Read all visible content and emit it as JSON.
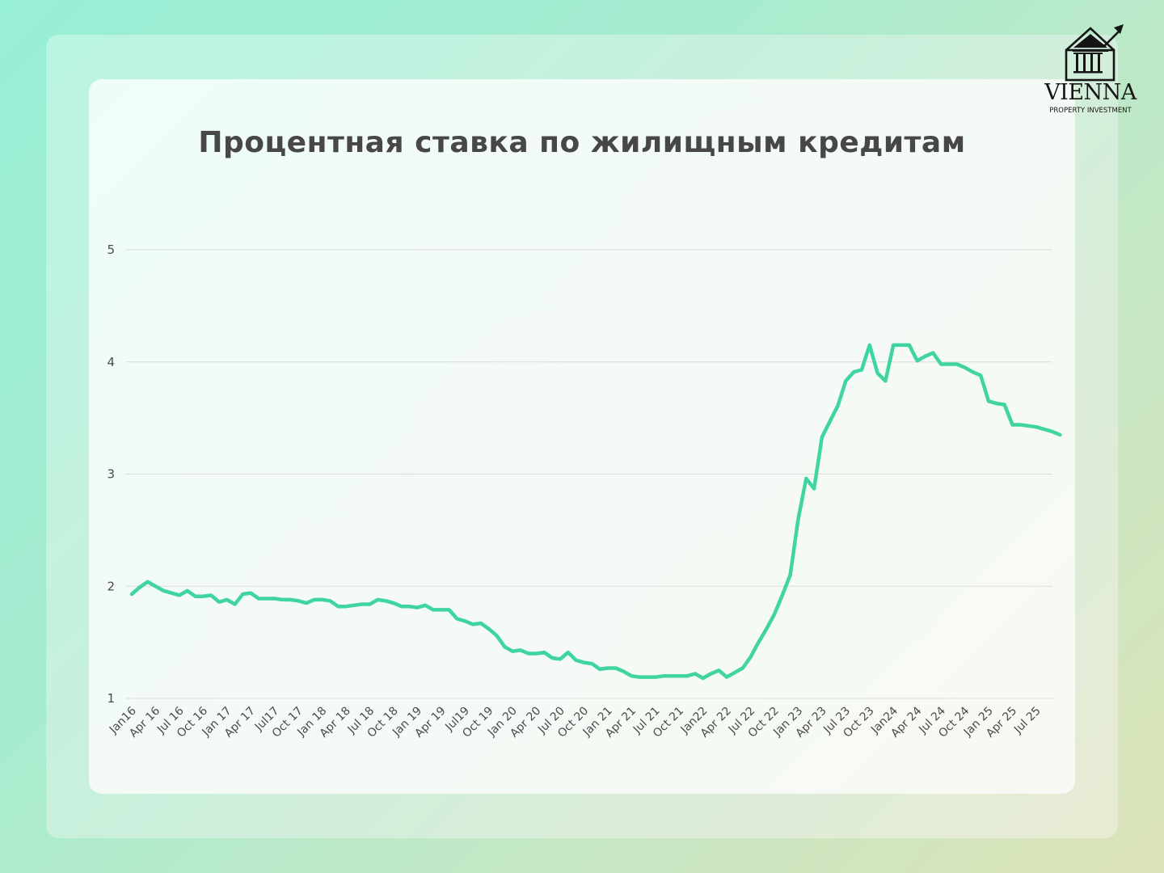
{
  "title": "Процентная ставка по жилищным кредитам",
  "logo": {
    "name": "VIENNA",
    "subtitle": "PROPERTY INVESTMENT",
    "icon": "house-columns-growth-arrow-icon"
  },
  "colors": {
    "line": "#3fd4a0",
    "grid": "#dcdcdc",
    "title": "#474747",
    "tick": "#4a4a4a"
  },
  "chart_data": {
    "type": "line",
    "title": "Процентная ставка по жилищным кредитам",
    "xlabel": "",
    "ylabel": "",
    "ylim": [
      1,
      5
    ],
    "yticks": [
      1,
      2,
      3,
      4,
      5
    ],
    "grid": true,
    "legend": "none",
    "x_tick_labels": [
      "Jan16",
      "Apr 16",
      "Jul 16",
      "Oct 16",
      "Jan 17",
      "Apr 17",
      "Jul17",
      "Oct 17",
      "Jan 18",
      "Apr 18",
      "Jul 18",
      "Oct 18",
      "Jan 19",
      "Apr 19",
      "Jul19",
      "Oct 19",
      "Jan 20",
      "Apr 20",
      "Jul 20",
      "Oct 20",
      "Jan 21",
      "Apr 21",
      "Jul 21",
      "Oct 21",
      "Jan22",
      "Apr 22",
      "Jul 22",
      "Oct 22",
      "Jan 23",
      "Apr 23",
      "Jul 23",
      "Oct 23",
      "Jan24",
      "Apr 24",
      "Jul 24",
      "Oct 24",
      "Jan 25",
      "Apr 25",
      "Jul 25"
    ],
    "x_start": "2016-01",
    "x_end": "2025-07",
    "frequency": "monthly",
    "series": [
      {
        "name": "Процентная ставка",
        "values": [
          1.93,
          1.99,
          2.04,
          2.0,
          1.96,
          1.94,
          1.92,
          1.96,
          1.91,
          1.91,
          1.92,
          1.86,
          1.88,
          1.84,
          1.93,
          1.94,
          1.89,
          1.89,
          1.89,
          1.88,
          1.88,
          1.87,
          1.85,
          1.88,
          1.88,
          1.87,
          1.82,
          1.82,
          1.83,
          1.84,
          1.84,
          1.88,
          1.87,
          1.85,
          1.82,
          1.82,
          1.81,
          1.83,
          1.79,
          1.79,
          1.79,
          1.71,
          1.69,
          1.66,
          1.67,
          1.62,
          1.56,
          1.46,
          1.42,
          1.43,
          1.4,
          1.4,
          1.41,
          1.36,
          1.35,
          1.41,
          1.34,
          1.32,
          1.31,
          1.26,
          1.27,
          1.27,
          1.24,
          1.2,
          1.19,
          1.19,
          1.19,
          1.2,
          1.2,
          1.2,
          1.2,
          1.22,
          1.18,
          1.22,
          1.25,
          1.19,
          1.23,
          1.27,
          1.37,
          1.5,
          1.62,
          1.75,
          1.92,
          2.1,
          2.6,
          2.96,
          2.87,
          3.33,
          3.47,
          3.61,
          3.83,
          3.91,
          3.93,
          4.15,
          3.9,
          3.83,
          4.15,
          4.15,
          4.15,
          4.01,
          4.05,
          4.08,
          3.98,
          3.98,
          3.98,
          3.95,
          3.91,
          3.88,
          3.65,
          3.63,
          3.62,
          3.44,
          3.44,
          3.43,
          3.42,
          3.4,
          3.38,
          3.35
        ]
      }
    ]
  }
}
